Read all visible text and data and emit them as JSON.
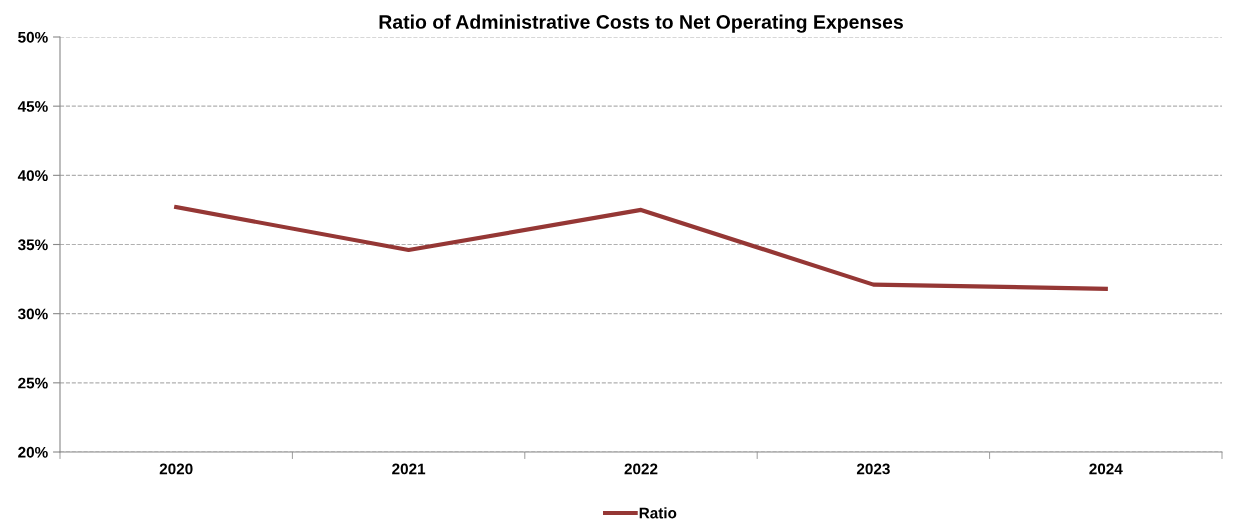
{
  "chart_data": {
    "type": "line",
    "title": "Ratio of Administrative Costs to Net Operating Expenses",
    "categories": [
      "2020",
      "2021",
      "2022",
      "2023",
      "2024"
    ],
    "series": [
      {
        "name": "Ratio",
        "color": "#953735",
        "values": [
          37.7,
          34.6,
          37.5,
          32.1,
          31.8
        ]
      }
    ],
    "ylim": [
      20,
      50
    ],
    "yticks": [
      {
        "value": 20,
        "label": "20%"
      },
      {
        "value": 25,
        "label": "25%"
      },
      {
        "value": 30,
        "label": "30%"
      },
      {
        "value": 35,
        "label": "35%"
      },
      {
        "value": 40,
        "label": "40%"
      },
      {
        "value": 45,
        "label": "45%"
      },
      {
        "value": 50,
        "label": "50%"
      }
    ],
    "grid": "y",
    "legend": "bottom",
    "marker": "none",
    "line_style": "solid"
  }
}
